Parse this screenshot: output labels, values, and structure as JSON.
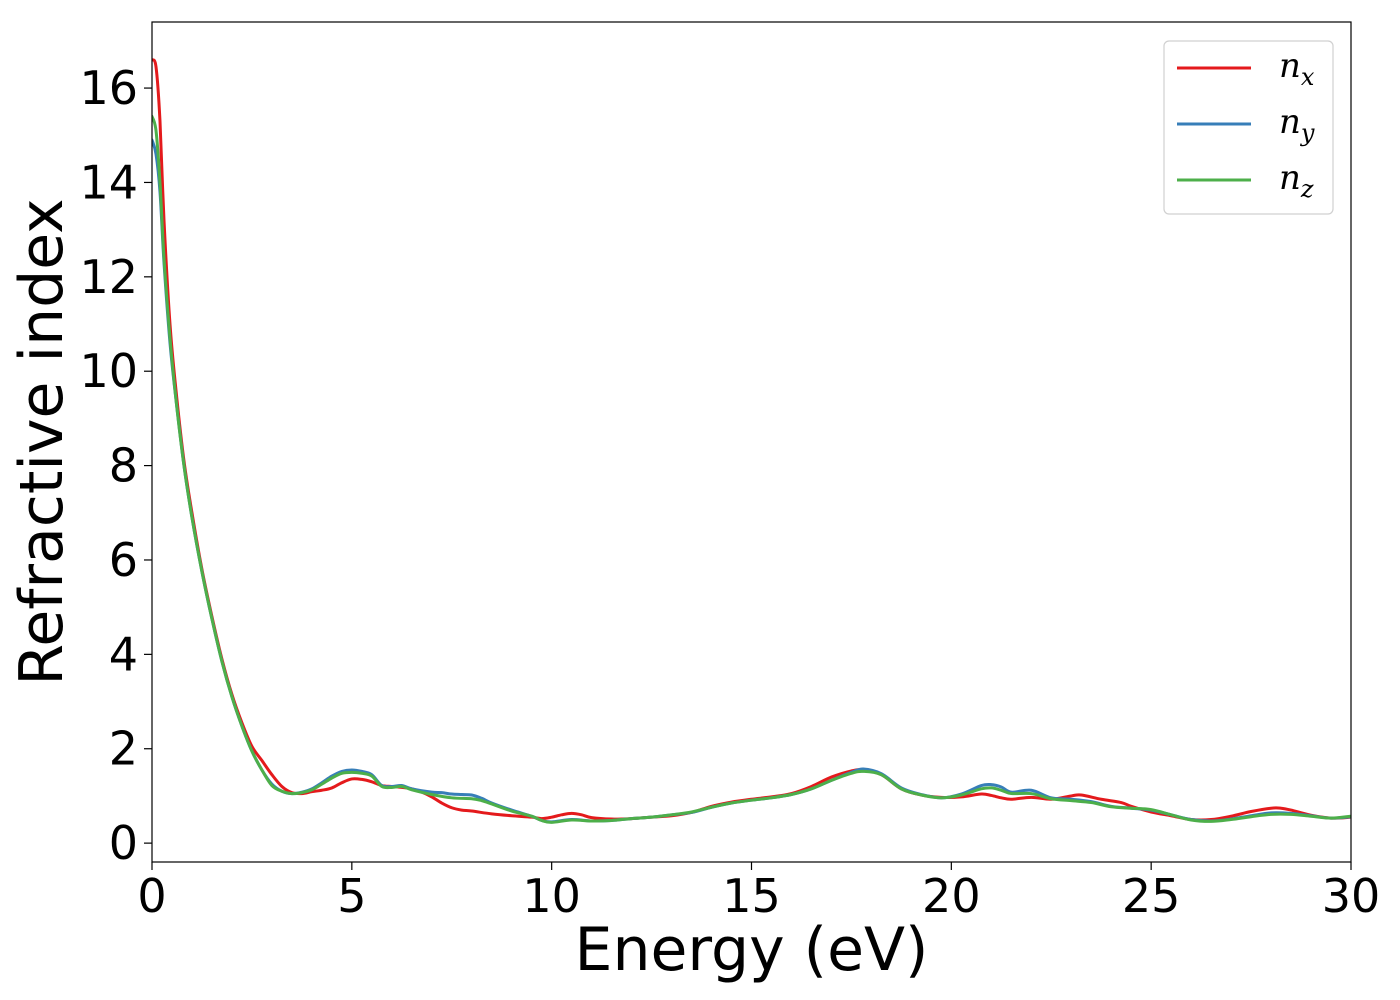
{
  "chart_data": {
    "type": "line",
    "title": "",
    "xlabel": "Energy (eV)",
    "ylabel": "Refractive index",
    "xlim": [
      0,
      30
    ],
    "ylim": [
      -0.4,
      17.4
    ],
    "xticks": [
      0,
      5,
      10,
      15,
      20,
      25,
      30
    ],
    "yticks": [
      0,
      2,
      4,
      6,
      8,
      10,
      12,
      14,
      16
    ],
    "grid": false,
    "legend_position": "top-right",
    "series": [
      {
        "name": "n_x",
        "label_symbol": "n",
        "label_subscript": "x",
        "color": "#e41a1c",
        "points": [
          [
            0,
            16.6
          ],
          [
            0.1,
            16.45
          ],
          [
            0.2,
            15.3
          ],
          [
            0.3,
            13.2
          ],
          [
            0.45,
            11.0
          ],
          [
            0.6,
            9.6
          ],
          [
            0.8,
            8.1
          ],
          [
            1.0,
            7.0
          ],
          [
            1.25,
            5.8
          ],
          [
            1.5,
            4.8
          ],
          [
            1.75,
            3.9
          ],
          [
            2.0,
            3.15
          ],
          [
            2.25,
            2.55
          ],
          [
            2.5,
            2.05
          ],
          [
            2.75,
            1.75
          ],
          [
            3.0,
            1.45
          ],
          [
            3.25,
            1.2
          ],
          [
            3.5,
            1.07
          ],
          [
            3.75,
            1.05
          ],
          [
            4.0,
            1.09
          ],
          [
            4.25,
            1.12
          ],
          [
            4.5,
            1.17
          ],
          [
            4.75,
            1.28
          ],
          [
            5.0,
            1.36
          ],
          [
            5.25,
            1.35
          ],
          [
            5.5,
            1.3
          ],
          [
            5.75,
            1.22
          ],
          [
            6.0,
            1.2
          ],
          [
            6.25,
            1.18
          ],
          [
            6.5,
            1.15
          ],
          [
            6.75,
            1.08
          ],
          [
            7.0,
            0.98
          ],
          [
            7.25,
            0.85
          ],
          [
            7.5,
            0.75
          ],
          [
            7.75,
            0.7
          ],
          [
            8.0,
            0.68
          ],
          [
            8.5,
            0.62
          ],
          [
            9.0,
            0.58
          ],
          [
            9.5,
            0.55
          ],
          [
            9.75,
            0.52
          ],
          [
            10.0,
            0.55
          ],
          [
            10.25,
            0.6
          ],
          [
            10.5,
            0.63
          ],
          [
            10.75,
            0.6
          ],
          [
            11.0,
            0.54
          ],
          [
            11.5,
            0.51
          ],
          [
            12.0,
            0.52
          ],
          [
            12.5,
            0.55
          ],
          [
            13.0,
            0.58
          ],
          [
            13.5,
            0.65
          ],
          [
            14.0,
            0.78
          ],
          [
            14.5,
            0.87
          ],
          [
            15.0,
            0.93
          ],
          [
            15.5,
            0.98
          ],
          [
            16.0,
            1.05
          ],
          [
            16.5,
            1.2
          ],
          [
            17.0,
            1.4
          ],
          [
            17.5,
            1.53
          ],
          [
            17.8,
            1.55
          ],
          [
            18.25,
            1.45
          ],
          [
            18.75,
            1.15
          ],
          [
            19.25,
            1.02
          ],
          [
            19.75,
            0.97
          ],
          [
            20.25,
            0.98
          ],
          [
            20.75,
            1.04
          ],
          [
            21.0,
            1.01
          ],
          [
            21.25,
            0.96
          ],
          [
            21.5,
            0.93
          ],
          [
            22.0,
            0.97
          ],
          [
            22.5,
            0.93
          ],
          [
            23.0,
            1.0
          ],
          [
            23.25,
            1.02
          ],
          [
            23.75,
            0.93
          ],
          [
            24.25,
            0.86
          ],
          [
            24.5,
            0.78
          ],
          [
            25.0,
            0.66
          ],
          [
            25.5,
            0.58
          ],
          [
            26.0,
            0.5
          ],
          [
            26.5,
            0.5
          ],
          [
            27.0,
            0.57
          ],
          [
            27.5,
            0.67
          ],
          [
            28.0,
            0.74
          ],
          [
            28.25,
            0.74
          ],
          [
            28.5,
            0.7
          ],
          [
            29.0,
            0.59
          ],
          [
            29.5,
            0.53
          ],
          [
            30.0,
            0.55
          ]
        ]
      },
      {
        "name": "n_y",
        "label_symbol": "n",
        "label_subscript": "y",
        "color": "#377eb8",
        "points": [
          [
            0,
            14.9
          ],
          [
            0.1,
            14.6
          ],
          [
            0.2,
            13.8
          ],
          [
            0.3,
            12.3
          ],
          [
            0.45,
            10.6
          ],
          [
            0.6,
            9.4
          ],
          [
            0.8,
            8.0
          ],
          [
            1.0,
            6.9
          ],
          [
            1.25,
            5.75
          ],
          [
            1.5,
            4.75
          ],
          [
            1.75,
            3.85
          ],
          [
            2.0,
            3.1
          ],
          [
            2.25,
            2.48
          ],
          [
            2.5,
            1.95
          ],
          [
            2.75,
            1.55
          ],
          [
            3.0,
            1.25
          ],
          [
            3.25,
            1.1
          ],
          [
            3.5,
            1.05
          ],
          [
            3.75,
            1.08
          ],
          [
            4.0,
            1.15
          ],
          [
            4.25,
            1.28
          ],
          [
            4.5,
            1.42
          ],
          [
            4.75,
            1.52
          ],
          [
            5.0,
            1.55
          ],
          [
            5.25,
            1.52
          ],
          [
            5.5,
            1.45
          ],
          [
            5.75,
            1.22
          ],
          [
            6.0,
            1.2
          ],
          [
            6.25,
            1.22
          ],
          [
            6.5,
            1.15
          ],
          [
            7.0,
            1.08
          ],
          [
            7.25,
            1.07
          ],
          [
            7.5,
            1.04
          ],
          [
            7.75,
            1.03
          ],
          [
            8.0,
            1.02
          ],
          [
            8.25,
            0.95
          ],
          [
            8.5,
            0.85
          ],
          [
            9.0,
            0.7
          ],
          [
            9.5,
            0.57
          ],
          [
            9.75,
            0.48
          ],
          [
            10.0,
            0.45
          ],
          [
            10.5,
            0.5
          ],
          [
            11.0,
            0.47
          ],
          [
            11.5,
            0.48
          ],
          [
            12.0,
            0.52
          ],
          [
            12.5,
            0.55
          ],
          [
            13.0,
            0.6
          ],
          [
            13.5,
            0.65
          ],
          [
            14.0,
            0.76
          ],
          [
            14.5,
            0.85
          ],
          [
            15.0,
            0.91
          ],
          [
            15.5,
            0.96
          ],
          [
            16.0,
            1.03
          ],
          [
            16.5,
            1.15
          ],
          [
            17.0,
            1.33
          ],
          [
            17.5,
            1.5
          ],
          [
            17.8,
            1.57
          ],
          [
            18.25,
            1.47
          ],
          [
            18.75,
            1.17
          ],
          [
            19.25,
            1.03
          ],
          [
            19.75,
            0.96
          ],
          [
            20.25,
            1.04
          ],
          [
            20.75,
            1.22
          ],
          [
            21.0,
            1.24
          ],
          [
            21.25,
            1.19
          ],
          [
            21.5,
            1.08
          ],
          [
            22.0,
            1.12
          ],
          [
            22.5,
            0.96
          ],
          [
            23.0,
            0.93
          ],
          [
            23.5,
            0.88
          ],
          [
            24.0,
            0.78
          ],
          [
            24.5,
            0.74
          ],
          [
            25.0,
            0.7
          ],
          [
            25.5,
            0.6
          ],
          [
            26.0,
            0.5
          ],
          [
            26.5,
            0.47
          ],
          [
            27.0,
            0.51
          ],
          [
            27.5,
            0.58
          ],
          [
            28.0,
            0.64
          ],
          [
            28.5,
            0.63
          ],
          [
            29.0,
            0.58
          ],
          [
            29.5,
            0.53
          ],
          [
            30.0,
            0.56
          ]
        ]
      },
      {
        "name": "n_z",
        "label_symbol": "n",
        "label_subscript": "z",
        "color": "#4daf4a",
        "points": [
          [
            0,
            15.4
          ],
          [
            0.1,
            15.1
          ],
          [
            0.2,
            14.0
          ],
          [
            0.3,
            12.4
          ],
          [
            0.45,
            10.7
          ],
          [
            0.6,
            9.4
          ],
          [
            0.8,
            8.0
          ],
          [
            1.0,
            6.9
          ],
          [
            1.25,
            5.75
          ],
          [
            1.5,
            4.75
          ],
          [
            1.75,
            3.85
          ],
          [
            2.0,
            3.1
          ],
          [
            2.25,
            2.48
          ],
          [
            2.5,
            1.95
          ],
          [
            2.75,
            1.55
          ],
          [
            3.0,
            1.22
          ],
          [
            3.25,
            1.1
          ],
          [
            3.5,
            1.05
          ],
          [
            3.75,
            1.07
          ],
          [
            4.0,
            1.13
          ],
          [
            4.25,
            1.25
          ],
          [
            4.5,
            1.38
          ],
          [
            4.75,
            1.48
          ],
          [
            5.0,
            1.5
          ],
          [
            5.25,
            1.48
          ],
          [
            5.5,
            1.42
          ],
          [
            5.75,
            1.2
          ],
          [
            6.0,
            1.18
          ],
          [
            6.25,
            1.2
          ],
          [
            6.5,
            1.13
          ],
          [
            7.0,
            1.03
          ],
          [
            7.5,
            0.96
          ],
          [
            8.0,
            0.94
          ],
          [
            8.25,
            0.9
          ],
          [
            8.5,
            0.83
          ],
          [
            9.0,
            0.68
          ],
          [
            9.5,
            0.57
          ],
          [
            9.75,
            0.48
          ],
          [
            10.0,
            0.44
          ],
          [
            10.5,
            0.49
          ],
          [
            11.0,
            0.47
          ],
          [
            11.5,
            0.48
          ],
          [
            12.0,
            0.52
          ],
          [
            12.5,
            0.55
          ],
          [
            13.0,
            0.6
          ],
          [
            13.5,
            0.66
          ],
          [
            14.0,
            0.76
          ],
          [
            14.5,
            0.85
          ],
          [
            15.0,
            0.91
          ],
          [
            15.5,
            0.96
          ],
          [
            16.0,
            1.03
          ],
          [
            16.5,
            1.15
          ],
          [
            17.0,
            1.33
          ],
          [
            17.5,
            1.48
          ],
          [
            17.8,
            1.52
          ],
          [
            18.25,
            1.45
          ],
          [
            18.75,
            1.15
          ],
          [
            19.25,
            1.02
          ],
          [
            19.75,
            0.96
          ],
          [
            20.25,
            1.02
          ],
          [
            20.75,
            1.15
          ],
          [
            21.0,
            1.17
          ],
          [
            21.25,
            1.12
          ],
          [
            21.5,
            1.05
          ],
          [
            22.0,
            1.05
          ],
          [
            22.5,
            0.94
          ],
          [
            23.0,
            0.9
          ],
          [
            23.5,
            0.86
          ],
          [
            24.0,
            0.77
          ],
          [
            24.5,
            0.74
          ],
          [
            25.0,
            0.71
          ],
          [
            25.5,
            0.6
          ],
          [
            26.0,
            0.49
          ],
          [
            26.5,
            0.46
          ],
          [
            27.0,
            0.5
          ],
          [
            27.5,
            0.56
          ],
          [
            28.0,
            0.61
          ],
          [
            28.5,
            0.61
          ],
          [
            29.0,
            0.57
          ],
          [
            29.5,
            0.53
          ],
          [
            30.0,
            0.57
          ]
        ]
      }
    ]
  }
}
